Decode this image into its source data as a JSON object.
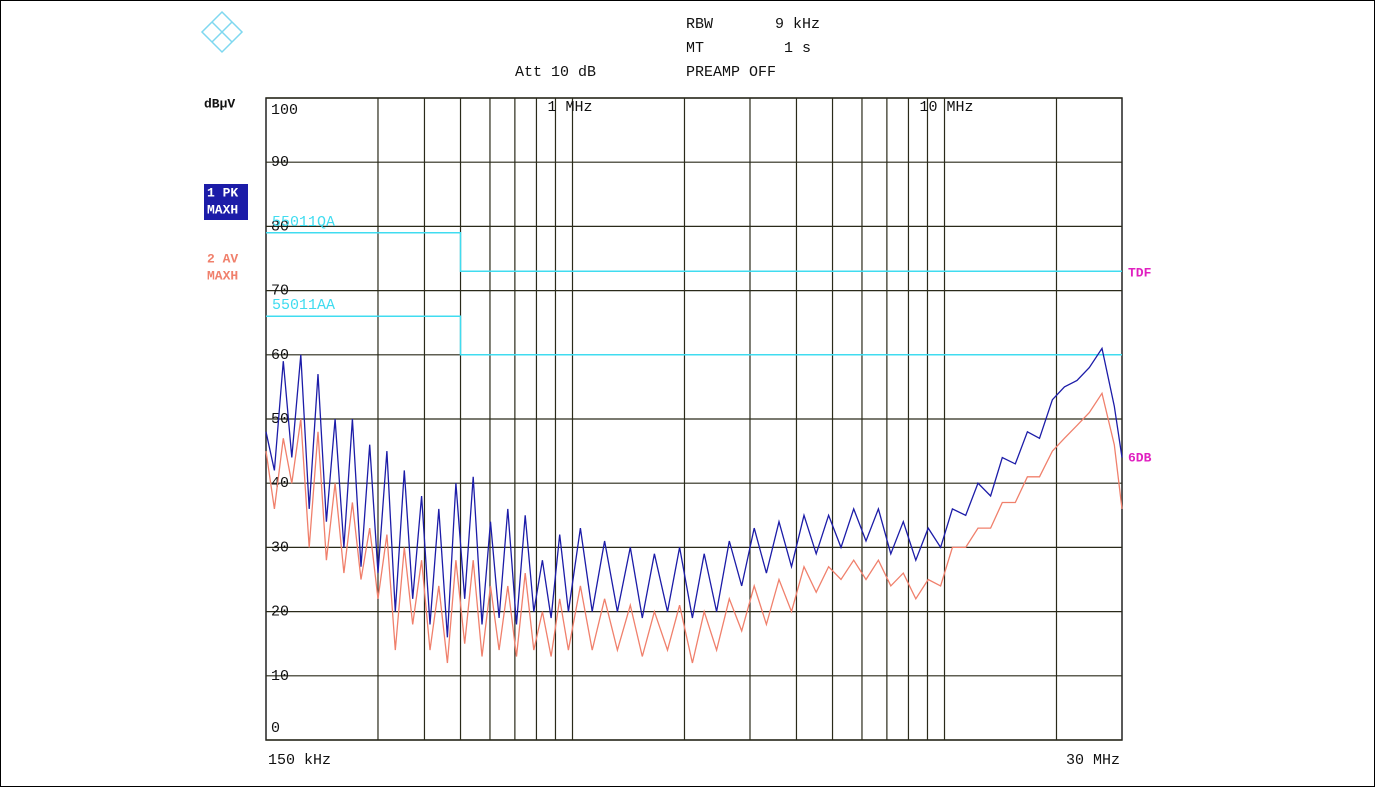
{
  "chart_data": {
    "type": "line",
    "xlog": true,
    "unit": "dBµV",
    "header": {
      "att": "Att 10 dB",
      "rbw_label": "RBW",
      "rbw": "9 kHz",
      "mt_label": "MT",
      "mt": "1 s",
      "preamp": "PREAMP OFF"
    },
    "xlim": [
      150000,
      30000000
    ],
    "xticks": [
      {
        "value": 150000,
        "label": "150 kHz"
      },
      {
        "value": 1000000,
        "label": "1 MHz"
      },
      {
        "value": 10000000,
        "label": "10 MHz"
      },
      {
        "value": 30000000,
        "label": "30 MHz"
      }
    ],
    "xgrid": [
      300000,
      400000,
      500000,
      600000,
      700000,
      800000,
      900000,
      1000000,
      2000000,
      3000000,
      4000000,
      5000000,
      6000000,
      7000000,
      8000000,
      9000000,
      10000000,
      20000000
    ],
    "ylim": [
      0,
      100
    ],
    "yticks": [
      0,
      10,
      20,
      30,
      40,
      50,
      60,
      70,
      80,
      90,
      100
    ],
    "grid": true,
    "x": [
      150000,
      158000,
      167000,
      176000,
      186000,
      196000,
      207000,
      218000,
      230000,
      243000,
      256000,
      270000,
      285000,
      300000,
      317000,
      334000,
      353000,
      372000,
      393000,
      414000,
      437000,
      461000,
      486000,
      513000,
      541000,
      571000,
      602000,
      635000,
      670000,
      707000,
      746000,
      787000,
      830000,
      876000,
      924000,
      975000,
      1050000,
      1130000,
      1220000,
      1320000,
      1430000,
      1540000,
      1660000,
      1800000,
      1940000,
      2100000,
      2260000,
      2440000,
      2640000,
      2850000,
      3080000,
      3320000,
      3590000,
      3880000,
      4190000,
      4520000,
      4880000,
      5270000,
      5700000,
      6150000,
      6640000,
      7170000,
      7750000,
      8370000,
      9040000,
      9760000,
      10500000,
      11400000,
      12300000,
      13300000,
      14300000,
      15500000,
      16700000,
      18000000,
      19500000,
      21000000,
      22700000,
      24500000,
      26500000,
      28600000,
      30000000
    ],
    "series": [
      {
        "name": "1 PK",
        "mode": "MAXH",
        "color": "#1c1ca8",
        "values": [
          48,
          42,
          59,
          44,
          60,
          36,
          57,
          34,
          50,
          30,
          50,
          27,
          46,
          26,
          45,
          20,
          42,
          22,
          38,
          18,
          36,
          16,
          40,
          22,
          41,
          18,
          34,
          19,
          36,
          18,
          35,
          20,
          28,
          19,
          32,
          20,
          33,
          20,
          31,
          20,
          30,
          19,
          29,
          20,
          30,
          19,
          29,
          20,
          31,
          24,
          33,
          26,
          34,
          27,
          35,
          29,
          35,
          30,
          36,
          31,
          36,
          29,
          34,
          28,
          33,
          30,
          36,
          35,
          40,
          38,
          44,
          43,
          48,
          47,
          53,
          55,
          56,
          58,
          61,
          52,
          44
        ]
      },
      {
        "name": "2 AV",
        "mode": "MAXH",
        "color": "#f0806c",
        "values": [
          45,
          36,
          47,
          40,
          50,
          30,
          48,
          28,
          40,
          26,
          37,
          25,
          33,
          22,
          32,
          14,
          30,
          18,
          28,
          14,
          24,
          12,
          28,
          15,
          28,
          13,
          24,
          14,
          24,
          13,
          26,
          14,
          20,
          13,
          22,
          14,
          24,
          14,
          22,
          14,
          21,
          13,
          20,
          14,
          21,
          12,
          20,
          14,
          22,
          17,
          24,
          18,
          25,
          20,
          27,
          23,
          27,
          25,
          28,
          25,
          28,
          24,
          26,
          22,
          25,
          24,
          30,
          30,
          33,
          33,
          37,
          37,
          41,
          41,
          45,
          47,
          49,
          51,
          54,
          46,
          36
        ]
      }
    ],
    "limit_lines": [
      {
        "name": "55011QA",
        "color": "#40dcf0",
        "x": [
          150000,
          500000,
          500000,
          30000000
        ],
        "values": [
          79,
          79,
          73,
          73
        ]
      },
      {
        "name": "55011AA",
        "color": "#40dcf0",
        "x": [
          150000,
          500000,
          500000,
          30000000
        ],
        "values": [
          66,
          66,
          60,
          60
        ]
      }
    ],
    "right_labels": [
      "TDF",
      "6DB"
    ]
  }
}
